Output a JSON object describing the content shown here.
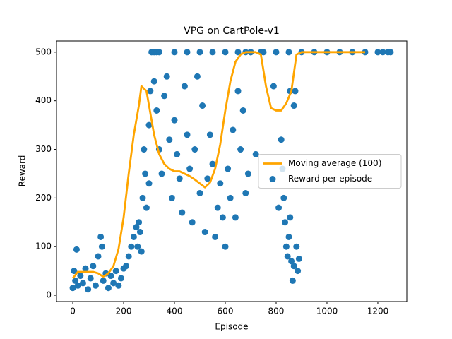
{
  "chart_data": {
    "type": "combo",
    "title": "VPG on CartPole-v1",
    "x_label": "Episode",
    "y_label": "Reward",
    "xlim": [
      -64,
      1314
    ],
    "ylim": [
      -13,
      523
    ],
    "xticks": [
      0,
      200,
      400,
      600,
      800,
      1000,
      1200
    ],
    "yticks": [
      0,
      100,
      200,
      300,
      400,
      500
    ],
    "legend": "center right",
    "series": [
      {
        "name": "Moving average (100)",
        "type": "line",
        "color": "#ffa500",
        "x": [
          0,
          20,
          80,
          100,
          120,
          140,
          160,
          180,
          200,
          220,
          240,
          260,
          270,
          290,
          300,
          320,
          340,
          360,
          380,
          400,
          420,
          440,
          460,
          480,
          500,
          520,
          540,
          560,
          580,
          600,
          620,
          640,
          660,
          680,
          720,
          740,
          760,
          780,
          800,
          820,
          840,
          860,
          880,
          900,
          1150
        ],
        "values": [
          35,
          48,
          48,
          45,
          38,
          45,
          60,
          95,
          160,
          250,
          330,
          390,
          430,
          420,
          390,
          330,
          290,
          270,
          260,
          255,
          255,
          250,
          245,
          238,
          230,
          222,
          232,
          260,
          310,
          380,
          440,
          480,
          495,
          500,
          500,
          495,
          430,
          385,
          380,
          380,
          395,
          420,
          495,
          500,
          500
        ]
      },
      {
        "name": "Reward per episode",
        "type": "scatter",
        "color": "#1f77b4",
        "x": [
          0,
          5,
          10,
          15,
          20,
          30,
          40,
          50,
          60,
          70,
          80,
          90,
          100,
          110,
          115,
          120,
          130,
          140,
          150,
          160,
          170,
          180,
          190,
          200,
          210,
          220,
          230,
          240,
          250,
          255,
          260,
          265,
          270,
          275,
          280,
          285,
          290,
          300,
          305,
          310,
          320,
          330,
          340,
          300,
          320,
          330,
          340,
          350,
          360,
          370,
          380,
          390,
          400,
          410,
          420,
          430,
          440,
          450,
          460,
          470,
          480,
          490,
          500,
          510,
          520,
          530,
          540,
          550,
          560,
          570,
          580,
          590,
          600,
          610,
          620,
          630,
          640,
          650,
          660,
          670,
          680,
          690,
          700,
          720,
          400,
          450,
          500,
          550,
          600,
          650,
          680,
          700,
          750,
          800,
          850,
          790,
          810,
          820,
          825,
          830,
          835,
          840,
          845,
          850,
          855,
          860,
          865,
          870,
          875,
          880,
          885,
          890,
          855,
          870,
          900,
          950,
          1000,
          1050,
          1100,
          1150,
          1200,
          1250,
          740,
          1220,
          1240
        ],
        "values": [
          15,
          50,
          30,
          94,
          20,
          40,
          25,
          55,
          12,
          35,
          60,
          20,
          80,
          120,
          100,
          30,
          45,
          15,
          40,
          25,
          50,
          20,
          35,
          55,
          60,
          80,
          100,
          120,
          140,
          100,
          150,
          130,
          90,
          200,
          300,
          250,
          180,
          350,
          420,
          500,
          500,
          500,
          500,
          230,
          440,
          380,
          300,
          250,
          410,
          450,
          320,
          200,
          360,
          290,
          240,
          170,
          430,
          330,
          260,
          150,
          300,
          450,
          210,
          390,
          130,
          240,
          330,
          270,
          120,
          180,
          230,
          160,
          100,
          260,
          200,
          340,
          160,
          420,
          300,
          380,
          210,
          250,
          500,
          290,
          500,
          500,
          500,
          500,
          500,
          500,
          500,
          500,
          500,
          500,
          500,
          430,
          180,
          320,
          260,
          200,
          150,
          100,
          80,
          120,
          160,
          70,
          30,
          60,
          420,
          100,
          50,
          75,
          420,
          390,
          500,
          500,
          500,
          500,
          500,
          500,
          500,
          500,
          500,
          500,
          500
        ]
      }
    ]
  }
}
